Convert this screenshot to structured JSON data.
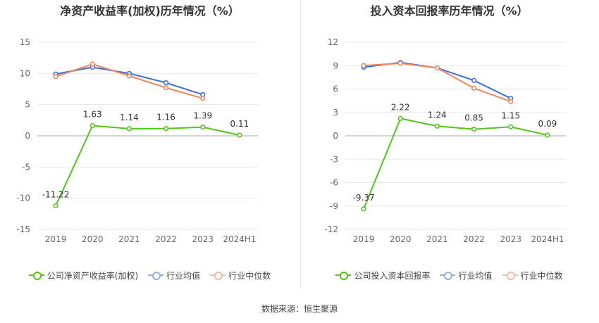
{
  "source_label": "数据来源：恒生聚源",
  "chart_data": [
    {
      "type": "line",
      "title": "净资产收益率(加权)历年情况（%）",
      "categories": [
        "2019",
        "2020",
        "2021",
        "2022",
        "2023",
        "2024H1"
      ],
      "ylim": [
        -15,
        15
      ],
      "yticks": [
        15,
        10,
        5,
        0,
        -5,
        -10,
        -15
      ],
      "grid": true,
      "legend_position": "bottom",
      "series": [
        {
          "name": "公司净资产收益率(加权)",
          "color": "#52c41a",
          "values": [
            -11.22,
            1.63,
            1.14,
            1.16,
            1.39,
            0.11
          ],
          "labels": [
            "-11.22",
            "1.63",
            "1.14",
            "1.16",
            "1.39",
            "0.11"
          ]
        },
        {
          "name": "行业均值",
          "color": "#3c6fd8",
          "values": [
            9.9,
            11.0,
            10.0,
            8.5,
            6.6,
            null
          ]
        },
        {
          "name": "行业中位数",
          "color": "#f0845c",
          "values": [
            9.5,
            11.5,
            9.6,
            7.7,
            6.0,
            null
          ]
        }
      ]
    },
    {
      "type": "line",
      "title": "投入资本回报率历年情况（%）",
      "categories": [
        "2019",
        "2020",
        "2021",
        "2022",
        "2023",
        "2024H1"
      ],
      "ylim": [
        -12,
        12
      ],
      "yticks": [
        12,
        9,
        6,
        3,
        0,
        -3,
        -6,
        -9,
        -12
      ],
      "grid": true,
      "legend_position": "bottom",
      "series": [
        {
          "name": "公司投入资本回报率",
          "color": "#52c41a",
          "values": [
            -9.37,
            2.22,
            1.24,
            0.85,
            1.15,
            0.09
          ],
          "labels": [
            "-9.37",
            "2.22",
            "1.24",
            "0.85",
            "1.15",
            "0.09"
          ]
        },
        {
          "name": "行业均值",
          "color": "#3c6fd8",
          "values": [
            8.8,
            9.4,
            8.7,
            7.1,
            4.8,
            null
          ]
        },
        {
          "name": "行业中位数",
          "color": "#f0845c",
          "values": [
            9.0,
            9.3,
            8.7,
            6.1,
            4.4,
            null
          ]
        }
      ]
    }
  ]
}
